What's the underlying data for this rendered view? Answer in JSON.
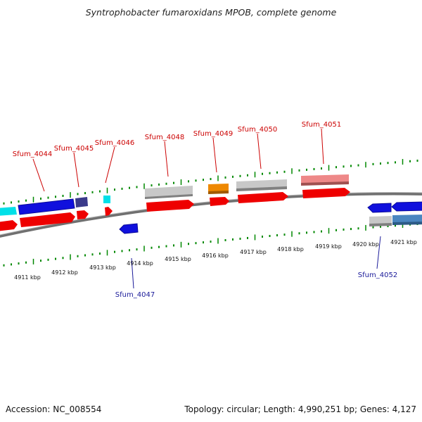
{
  "header": {
    "title": "Syntrophobacter fumaroxidans MPOB, complete genome"
  },
  "footer": {
    "accession": "Accession: NC_008554",
    "summary": "Topology: circular; Length: 4,990,251 bp; Genes: 4,127"
  },
  "colors": {
    "cds_red": "#ee0000",
    "gene_blue": "#1010dd",
    "cyan": "#00e0e8",
    "navy": "#3a3a8a",
    "grey": "#c0c0c0",
    "orange": "#ee8800",
    "pink": "#ee8888",
    "steel_blue": "#4a86c0",
    "tick_green": "#008800",
    "label_red": "#cc0000",
    "label_blue": "#1a1a99"
  },
  "axis": {
    "ticks": [
      "4911 kbp",
      "4912 kbp",
      "4913 kbp",
      "4914 kbp",
      "4915 kbp",
      "4916 kbp",
      "4917 kbp",
      "4918 kbp",
      "4919 kbp",
      "4920 kbp",
      "4921 kbp"
    ]
  },
  "gene_labels": {
    "sfum_4044": "Sfum_4044",
    "sfum_4045": "Sfum_4045",
    "sfum_4046": "Sfum_4046",
    "sfum_4047": "Sfum_4047",
    "sfum_4048": "Sfum_4048",
    "sfum_4049": "Sfum_4049",
    "sfum_4050": "Sfum_4050",
    "sfum_4051": "Sfum_4051",
    "sfum_4052": "Sfum_4052"
  }
}
